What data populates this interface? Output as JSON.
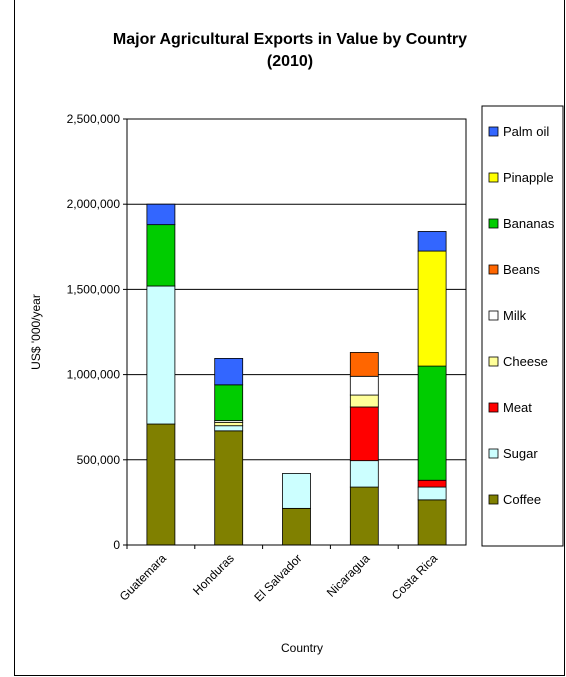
{
  "chart_data": {
    "type": "bar",
    "stacked": true,
    "title": "Major Agricultural Exports in Value by Country",
    "subtitle": "(2010)",
    "xlabel": "Country",
    "ylabel": "US$ '000/year",
    "ylim": [
      0,
      2500000
    ],
    "yticks": [
      0,
      500000,
      1000000,
      1500000,
      2000000,
      2500000
    ],
    "ytick_labels": [
      "0",
      "500,000",
      "1,000,000",
      "1,500,000",
      "2,000,000",
      "2,500,000"
    ],
    "grid": true,
    "legend_position": "right",
    "categories": [
      "Guatemara",
      "Honduras",
      "El Salvador",
      "Nicaragua",
      "Costa Rica"
    ],
    "series": [
      {
        "name": "Coffee",
        "color": "#808000",
        "values": [
          710000,
          670000,
          215000,
          340000,
          265000
        ]
      },
      {
        "name": "Sugar",
        "color": "#CCFFFF",
        "values": [
          810000,
          30000,
          205000,
          155000,
          75000
        ]
      },
      {
        "name": "Meat",
        "color": "#FF0000",
        "values": [
          0,
          0,
          0,
          315000,
          40000
        ]
      },
      {
        "name": "Cheese",
        "color": "#FFFF99",
        "values": [
          0,
          20000,
          0,
          70000,
          0
        ]
      },
      {
        "name": "Milk",
        "color": "#FFFFFF",
        "values": [
          0,
          10000,
          0,
          110000,
          0
        ]
      },
      {
        "name": "Beans",
        "color": "#FF6600",
        "values": [
          0,
          0,
          0,
          140000,
          0
        ]
      },
      {
        "name": "Bananas",
        "color": "#00CC00",
        "values": [
          360000,
          210000,
          0,
          0,
          670000
        ]
      },
      {
        "name": "Pinapple",
        "color": "#FFFF00",
        "values": [
          0,
          0,
          0,
          0,
          675000
        ]
      },
      {
        "name": "Palm oil",
        "color": "#3366FF",
        "values": [
          120000,
          155000,
          0,
          0,
          115000
        ]
      }
    ],
    "legend_order": [
      "Palm oil",
      "Pinapple",
      "Bananas",
      "Beans",
      "Milk",
      "Cheese",
      "Meat",
      "Sugar",
      "Coffee"
    ]
  }
}
